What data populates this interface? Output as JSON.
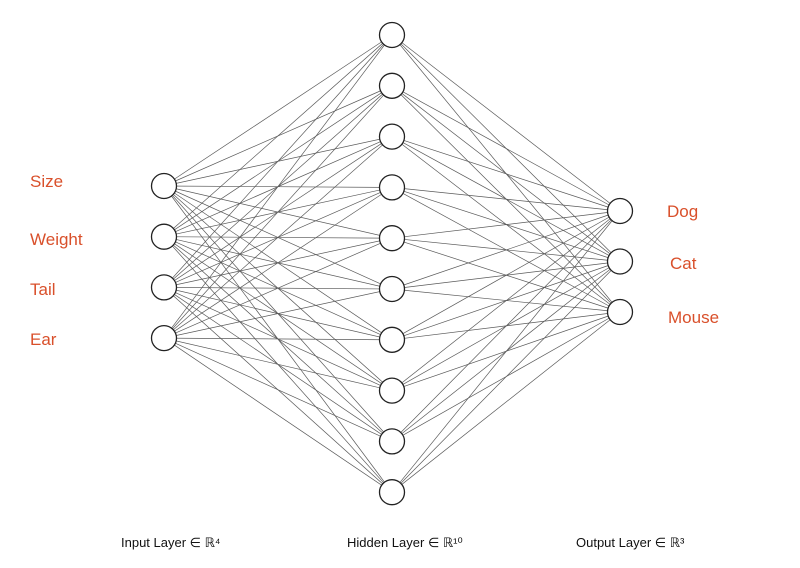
{
  "network": {
    "input_nodes": 4,
    "hidden_nodes": 10,
    "output_nodes": 3
  },
  "input_labels": [
    "Size",
    "Weight",
    "Tail",
    "Ear"
  ],
  "output_labels": [
    "Dog",
    "Cat",
    "Mouse"
  ],
  "captions": {
    "input": "Input Layer ∈ ℝ⁴",
    "hidden": "Hidden Layer ∈ ℝ¹⁰",
    "output": "Output Layer ∈ ℝ³"
  },
  "colors": {
    "label": "#d9502b",
    "edge": "#5a5a5a",
    "node_stroke": "#222222"
  }
}
